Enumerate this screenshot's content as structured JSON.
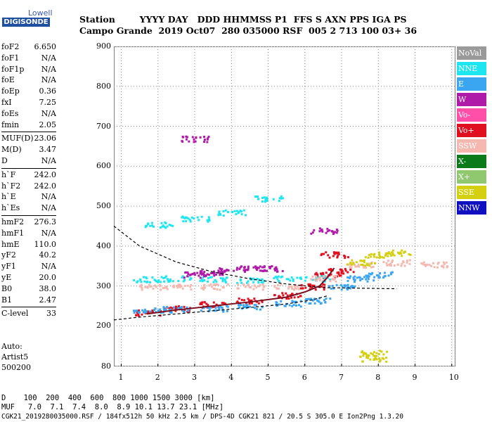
{
  "logo": {
    "line1": "Lowell",
    "line2": "DIGISONDE"
  },
  "header": {
    "row1": "Station        YYYY DAY   DDD HHMMSS P1  FFS S AXN PPS IGA PS",
    "row2": "Campo Grande  2019 Oct07  280 035000 RSF  005 2 713 100 03+ 36"
  },
  "params": [
    {
      "k": "foF2",
      "v": "6.650"
    },
    {
      "k": "foF1",
      "v": "N/A"
    },
    {
      "k": "foF1p",
      "v": "N/A"
    },
    {
      "k": "foE",
      "v": "N/A"
    },
    {
      "k": "foEp",
      "v": "0.36"
    },
    {
      "k": "fxI",
      "v": "7.25"
    },
    {
      "k": "foEs",
      "v": "N/A"
    },
    {
      "k": "fmin",
      "v": "2.05"
    },
    {
      "k": "MUF(D)",
      "v": "23.06"
    },
    {
      "k": "M(D)",
      "v": "3.47"
    },
    {
      "k": "D",
      "v": "N/A"
    },
    {
      "k": "h`F",
      "v": "242.0"
    },
    {
      "k": "h`F2",
      "v": "242.0"
    },
    {
      "k": "h`E",
      "v": "N/A"
    },
    {
      "k": "h`Es",
      "v": "N/A"
    },
    {
      "k": "hmF2",
      "v": "276.3"
    },
    {
      "k": "hmF1",
      "v": "N/A"
    },
    {
      "k": "hmE",
      "v": "110.0"
    },
    {
      "k": "yF2",
      "v": "40.2"
    },
    {
      "k": "yF1",
      "v": "N/A"
    },
    {
      "k": "yE",
      "v": "20.0"
    },
    {
      "k": "B0",
      "v": "38.0"
    },
    {
      "k": "B1",
      "v": "2.47"
    },
    {
      "k": "C-level",
      "v": "33"
    }
  ],
  "auto": {
    "line1": "Auto:",
    "line2": "Artist5",
    "line3": "500200"
  },
  "legend": [
    {
      "label": "NoVal",
      "color": "#9a9a9a"
    },
    {
      "label": "NNE",
      "color": "#1ee6f0"
    },
    {
      "label": "E",
      "color": "#3aa6f2"
    },
    {
      "label": "W",
      "color": "#b01aa8"
    },
    {
      "label": "Vo-",
      "color": "#ff4fa8"
    },
    {
      "label": "Vo+",
      "color": "#e01020"
    },
    {
      "label": "SSW",
      "color": "#f5b8b0"
    },
    {
      "label": "X-",
      "color": "#0a7a1a"
    },
    {
      "label": "X+",
      "color": "#90c870"
    },
    {
      "label": "SSE",
      "color": "#d4d010"
    },
    {
      "label": "NNW",
      "color": "#1010c0"
    }
  ],
  "chart_data": {
    "type": "scatter",
    "xlim": [
      0.8,
      10.1
    ],
    "ylim": [
      80,
      900
    ],
    "x_ticks": [
      1,
      2,
      3,
      4,
      5,
      6,
      7,
      8,
      9,
      10
    ],
    "y_ticks": [
      80,
      200,
      300,
      400,
      500,
      600,
      700,
      800,
      900
    ],
    "series": [
      {
        "name": "Vo+",
        "values": [
          [
            1.7,
            235
          ],
          [
            2.5,
            245
          ],
          [
            3.5,
            255
          ],
          [
            4.5,
            265
          ],
          [
            5.5,
            278
          ],
          [
            6.2,
            300
          ],
          [
            6.6,
            330
          ],
          [
            6.8,
            380
          ],
          [
            7.0,
            340
          ]
        ]
      },
      {
        "name": "E",
        "values": [
          [
            1.7,
            240
          ],
          [
            2.5,
            243
          ],
          [
            3.5,
            245
          ],
          [
            4.5,
            250
          ],
          [
            5.5,
            258
          ],
          [
            6.3,
            265
          ],
          [
            7.0,
            300
          ],
          [
            7.5,
            320
          ],
          [
            8.0,
            330
          ]
        ]
      },
      {
        "name": "NNE",
        "values": [
          [
            1.7,
            318
          ],
          [
            2.5,
            320
          ],
          [
            3.5,
            318
          ],
          [
            4.5,
            315
          ],
          [
            5.5,
            320
          ],
          [
            6.3,
            320
          ],
          [
            2.0,
            455
          ],
          [
            3.0,
            470
          ],
          [
            4.0,
            485
          ],
          [
            5.0,
            520
          ]
        ]
      },
      {
        "name": "SSW",
        "values": [
          [
            1.8,
            300
          ],
          [
            2.5,
            300
          ],
          [
            3.5,
            300
          ],
          [
            4.5,
            300
          ],
          [
            5.5,
            300
          ],
          [
            6.5,
            320
          ],
          [
            7.5,
            355
          ],
          [
            8.5,
            360
          ],
          [
            9.5,
            355
          ]
        ]
      },
      {
        "name": "W",
        "values": [
          [
            3.0,
            330
          ],
          [
            3.5,
            335
          ],
          [
            4.0,
            340
          ],
          [
            4.5,
            345
          ],
          [
            5.0,
            345
          ],
          [
            6.5,
            440
          ],
          [
            3.0,
            670
          ]
        ]
      },
      {
        "name": "SSE",
        "values": [
          [
            7.5,
            360
          ],
          [
            8.0,
            380
          ],
          [
            8.5,
            385
          ],
          [
            7.85,
            122
          ],
          [
            7.85,
            105
          ]
        ]
      }
    ],
    "curves": {
      "trace_upper": [
        [
          0.8,
          450
        ],
        [
          1.5,
          400
        ],
        [
          2.5,
          360
        ],
        [
          3.5,
          335
        ],
        [
          4.5,
          318
        ],
        [
          5.5,
          305
        ],
        [
          6.5,
          296
        ],
        [
          8.5,
          293
        ]
      ],
      "trace_lower": [
        [
          0.8,
          215
        ],
        [
          1.5,
          222
        ],
        [
          2.5,
          230
        ],
        [
          3.5,
          238
        ],
        [
          4.5,
          246
        ],
        [
          5.5,
          255
        ],
        [
          6.2,
          265
        ],
        [
          6.6,
          275
        ]
      ],
      "profile_fit": [
        [
          1.7,
          230
        ],
        [
          2.5,
          240
        ],
        [
          3.5,
          250
        ],
        [
          4.5,
          260
        ],
        [
          5.5,
          272
        ],
        [
          6.0,
          285
        ],
        [
          6.4,
          300
        ],
        [
          6.6,
          320
        ],
        [
          6.8,
          345
        ]
      ]
    }
  },
  "footer": {
    "row1": "D    100  200  400  600  800 1000 1500 3000 [km]",
    "row2": "MUF   7.0  7.1  7.4  8.0  8.9 10.1 13.7 23.1 [MHz]",
    "row3": "CGK21_2019280035000.RSF / 184fx512h 50 kHz 2.5 km / DPS-4D CGK21 821 / 20.5 S 305.0 E Ion2Png 1.3.20"
  }
}
